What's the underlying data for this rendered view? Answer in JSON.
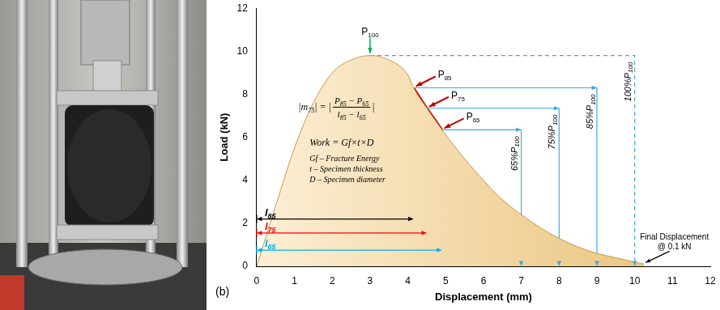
{
  "chart_data": {
    "type": "line",
    "panel_label": "(b)",
    "x_label": "Displacement (mm)",
    "y_label": "Load (kN)",
    "xlim": [
      0,
      12
    ],
    "xticks": [
      0,
      1,
      2,
      3,
      4,
      5,
      6,
      7,
      8,
      9,
      10,
      11,
      12
    ],
    "ylim": [
      0,
      12
    ],
    "yticks": [
      0,
      2,
      4,
      6,
      8,
      10,
      12
    ],
    "grid": false,
    "curve": {
      "x": [
        0,
        0.5,
        1,
        1.5,
        2,
        2.5,
        3,
        3.5,
        4,
        4.15,
        4.5,
        4.9,
        5.5,
        6,
        6.5,
        7,
        7.5,
        8,
        8.5,
        9,
        9.5,
        10,
        10.25
      ],
      "values": [
        0,
        2.8,
        5.5,
        7.6,
        9.0,
        9.6,
        9.8,
        9.6,
        8.9,
        8.3,
        7.35,
        6.35,
        5.0,
        4.0,
        3.1,
        2.4,
        1.8,
        1.3,
        0.9,
        0.6,
        0.4,
        0.2,
        0.1
      ],
      "color": "#e8bf72"
    },
    "points": [
      {
        "label": "P100",
        "x": 3,
        "y": 9.8,
        "color": "#00b050",
        "level": {
          "label": "100%P100",
          "x": 10,
          "color": "#3fa9e0",
          "line_style": "dashed"
        }
      },
      {
        "label": "P85",
        "x": 4.15,
        "y": 8.3,
        "color": "#c00000",
        "level": {
          "label": "85%P100",
          "x": 9,
          "color": "#3fa9e0",
          "line_style": "solid"
        }
      },
      {
        "label": "P75",
        "x": 4.5,
        "y": 7.35,
        "color": "#c00000",
        "level": {
          "label": "75%P100",
          "x": 8,
          "color": "#3fa9e0",
          "line_style": "solid"
        }
      },
      {
        "label": "P65",
        "x": 4.9,
        "y": 6.35,
        "color": "#c00000",
        "level": {
          "label": "65%P100",
          "x": 7,
          "color": "#3fa9e0",
          "line_style": "solid"
        }
      }
    ],
    "slope": {
      "points": [
        "P85",
        "P65"
      ],
      "color": "#c00000",
      "formula": {
        "lhs": "|m75| = |",
        "numerator": "P85 − P65",
        "denominator": "l85 − l65",
        "rhs": "|"
      }
    },
    "lengths": [
      {
        "label": "l85",
        "point": "P85",
        "y": 2.2,
        "color": "#000000"
      },
      {
        "label": "l75",
        "point": "P75",
        "y": 1.55,
        "color": "#ff0000"
      },
      {
        "label": "l65",
        "point": "P65",
        "y": 0.75,
        "color": "#00b0f0"
      }
    ],
    "notes": [
      "Work = Gf×t×D",
      "Gf – Fracture Energy",
      "t – Specimen thickness",
      "D – Specimen diameter"
    ],
    "final": {
      "label": [
        "Final Displacement",
        "@ 0.1 kN"
      ],
      "x": 10.25,
      "y": 0.1
    }
  }
}
